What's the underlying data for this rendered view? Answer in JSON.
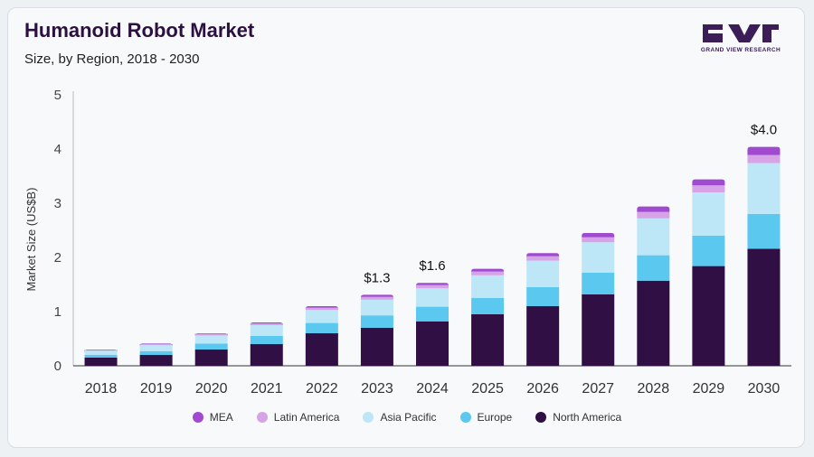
{
  "header": {
    "title": "Humanoid Robot Market",
    "subtitle": "Size, by Region, 2018 - 2030"
  },
  "logo": {
    "text": "GRAND VIEW RESEARCH",
    "color": "#3b1d57"
  },
  "chart_data": {
    "type": "bar",
    "stacked": true,
    "title": "Humanoid Robot Market",
    "subtitle": "Size, by Region, 2018 - 2030",
    "xlabel": "",
    "ylabel": "Market Size (US$B)",
    "ylim": [
      0,
      5
    ],
    "yticks": [
      "0",
      "1",
      "2",
      "3",
      "4",
      "5"
    ],
    "grid": false,
    "legend_position": "bottom",
    "categories": [
      "2018",
      "2019",
      "2020",
      "2021",
      "2022",
      "2023",
      "2024",
      "2025",
      "2026",
      "2027",
      "2028",
      "2029",
      "2030"
    ],
    "series": [
      {
        "name": "North America",
        "color": "#300f44",
        "values": [
          0.15,
          0.2,
          0.3,
          0.4,
          0.6,
          0.7,
          0.82,
          0.95,
          1.1,
          1.32,
          1.57,
          1.84,
          2.16
        ]
      },
      {
        "name": "Europe",
        "color": "#5bc8f0",
        "values": [
          0.05,
          0.07,
          0.11,
          0.15,
          0.19,
          0.23,
          0.27,
          0.3,
          0.35,
          0.4,
          0.47,
          0.56,
          0.64
        ]
      },
      {
        "name": "Asia Pacific",
        "color": "#bde6f6",
        "values": [
          0.08,
          0.11,
          0.15,
          0.2,
          0.24,
          0.29,
          0.34,
          0.42,
          0.49,
          0.56,
          0.68,
          0.8,
          0.94
        ]
      },
      {
        "name": "Latin America",
        "color": "#d6a4e6",
        "values": [
          0.01,
          0.02,
          0.03,
          0.03,
          0.04,
          0.05,
          0.06,
          0.07,
          0.08,
          0.09,
          0.12,
          0.13,
          0.15
        ]
      },
      {
        "name": "MEA",
        "color": "#a04ad0",
        "values": [
          0.01,
          0.01,
          0.01,
          0.02,
          0.03,
          0.04,
          0.04,
          0.05,
          0.06,
          0.08,
          0.1,
          0.11,
          0.15
        ]
      }
    ],
    "data_labels": [
      {
        "category": "2023",
        "text": "$1.3"
      },
      {
        "category": "2024",
        "text": "$1.6"
      },
      {
        "category": "2030",
        "text": "$4.0"
      }
    ]
  }
}
